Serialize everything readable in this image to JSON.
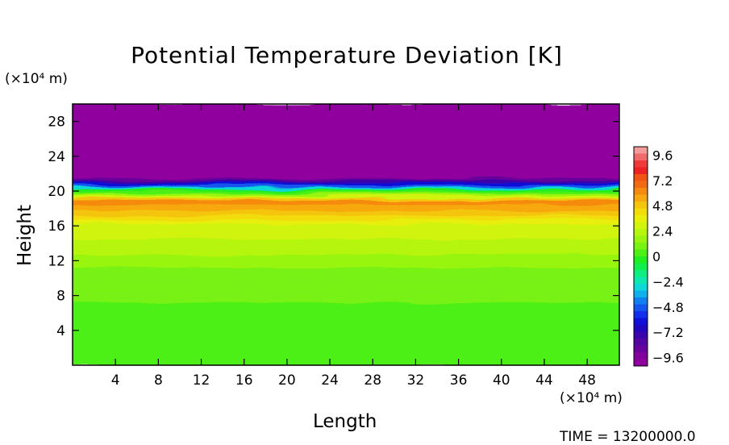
{
  "chart_data": {
    "type": "heatmap",
    "title": "Potential Temperature Deviation [K]",
    "xlabel": "Length",
    "ylabel": "Height",
    "x_unit": "(×10⁴ m)",
    "y_unit": "(×10⁴ m)",
    "xlim": [
      0,
      51
    ],
    "ylim": [
      0,
      30
    ],
    "x_ticks": [
      4,
      8,
      12,
      16,
      20,
      24,
      28,
      32,
      36,
      40,
      44,
      48
    ],
    "y_ticks": [
      4,
      8,
      12,
      16,
      20,
      24,
      28
    ],
    "colorbar": {
      "range": [
        -10.4,
        10.4
      ],
      "tick_labels": [
        "9.6",
        "7.2",
        "4.8",
        "2.4",
        "0",
        "−2.4",
        "−4.8",
        "−7.2",
        "−9.6"
      ],
      "tick_values": [
        9.6,
        7.2,
        4.8,
        2.4,
        0,
        -2.4,
        -4.8,
        -7.2,
        -9.6
      ],
      "colors": [
        "#f49a9a",
        "#f06a6a",
        "#ef3a3a",
        "#ee2222",
        "#f25416",
        "#f26a14",
        "#f58a10",
        "#f7a80e",
        "#f5c40c",
        "#f2dc0a",
        "#e8ef0a",
        "#d0f40c",
        "#b6f50e",
        "#98f510",
        "#78f212",
        "#4ef014",
        "#20ee20",
        "#10ef4c",
        "#0eef80",
        "#0ee8ae",
        "#0ed8d8",
        "#10b0ec",
        "#1280f0",
        "#1456ee",
        "#1230ec",
        "#1010d8",
        "#2008c0",
        "#3a06ac",
        "#5205a0",
        "#68049c",
        "#82039c",
        "#90009e"
      ]
    },
    "profile": [
      {
        "h": 0,
        "value": 0.2
      },
      {
        "h": 6,
        "value": 0.3
      },
      {
        "h": 8,
        "value": 0.9
      },
      {
        "h": 11,
        "value": 1.2
      },
      {
        "h": 14,
        "value": 2.5
      },
      {
        "h": 16,
        "value": 3.0
      },
      {
        "h": 17,
        "value": 4.2
      },
      {
        "h": 18,
        "value": 5.6
      },
      {
        "h": 19,
        "value": 6.2
      },
      {
        "h": 19.5,
        "value": 1.8
      },
      {
        "h": 20.1,
        "value": -0.4
      },
      {
        "h": 20.6,
        "value": -4.8
      },
      {
        "h": 21.1,
        "value": -7.5
      },
      {
        "h": 21.6,
        "value": -10.0
      },
      {
        "h": 30,
        "value": -10.2
      }
    ],
    "time_label": "TIME = 13200000.0"
  }
}
